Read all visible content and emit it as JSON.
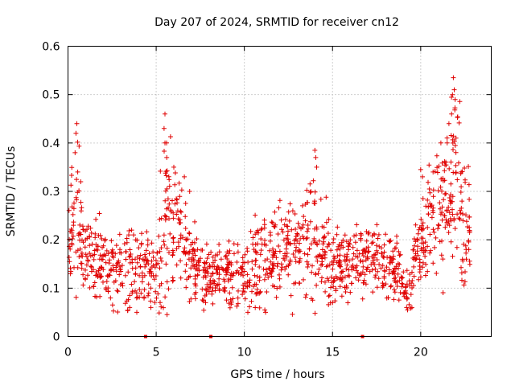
{
  "chart_data": {
    "type": "scatter",
    "title": "Day 207 of 2024, SRMTID for receiver cn12",
    "xlabel": "GPS time / hours",
    "ylabel": "SRMTID / TECUs",
    "xlim": [
      0,
      24
    ],
    "ylim": [
      0,
      0.6
    ],
    "xticks": [
      0,
      5,
      10,
      15,
      20
    ],
    "yticks": [
      0,
      0.1,
      0.2,
      0.3,
      0.4,
      0.5,
      0.6
    ],
    "ytick_labels": [
      "0",
      "0.1",
      "0.2",
      "0.3",
      "0.4",
      "0.5",
      "0.6"
    ],
    "grid": true,
    "marker": "+",
    "color": "#e00000",
    "series_name": "SRMTID",
    "zero_markers_x": [
      4.4,
      8.1,
      16.7
    ],
    "envelope": {
      "description_hours": [
        0,
        0.2,
        0.5,
        0.8,
        1.5,
        2.0,
        3.0,
        3.7,
        4.3,
        5.0,
        5.5,
        6.0,
        6.6,
        7.3,
        8.0,
        9.0,
        10.0,
        11.0,
        12.0,
        13.0,
        14.0,
        14.5,
        15.5,
        16.5,
        17.5,
        18.5,
        19.3,
        20.0,
        20.7,
        21.3,
        21.9,
        22.4,
        22.8
      ],
      "mean_srmtid": [
        0.2,
        0.22,
        0.27,
        0.18,
        0.16,
        0.15,
        0.14,
        0.13,
        0.14,
        0.15,
        0.25,
        0.23,
        0.19,
        0.15,
        0.12,
        0.14,
        0.12,
        0.16,
        0.17,
        0.18,
        0.2,
        0.17,
        0.14,
        0.16,
        0.17,
        0.14,
        0.1,
        0.2,
        0.26,
        0.27,
        0.33,
        0.24,
        0.2
      ],
      "spread_srmtid": [
        0.05,
        0.06,
        0.09,
        0.05,
        0.04,
        0.04,
        0.05,
        0.05,
        0.04,
        0.05,
        0.1,
        0.08,
        0.06,
        0.04,
        0.03,
        0.04,
        0.04,
        0.05,
        0.05,
        0.05,
        0.07,
        0.05,
        0.04,
        0.04,
        0.04,
        0.04,
        0.03,
        0.05,
        0.07,
        0.08,
        0.1,
        0.07,
        0.06
      ]
    },
    "highlight_points": [
      {
        "x": 0.5,
        "y": 0.44
      },
      {
        "x": 0.45,
        "y": 0.42
      },
      {
        "x": 0.4,
        "y": 0.38
      },
      {
        "x": 0.55,
        "y": 0.34
      },
      {
        "x": 5.5,
        "y": 0.46
      },
      {
        "x": 5.45,
        "y": 0.43
      },
      {
        "x": 5.5,
        "y": 0.4
      },
      {
        "x": 5.6,
        "y": 0.37
      },
      {
        "x": 6.0,
        "y": 0.35
      },
      {
        "x": 6.6,
        "y": 0.33
      },
      {
        "x": 6.9,
        "y": 0.3
      },
      {
        "x": 14.0,
        "y": 0.385
      },
      {
        "x": 14.05,
        "y": 0.37
      },
      {
        "x": 14.1,
        "y": 0.35
      },
      {
        "x": 20.0,
        "y": 0.345
      },
      {
        "x": 20.1,
        "y": 0.33
      },
      {
        "x": 20.7,
        "y": 0.34
      },
      {
        "x": 21.5,
        "y": 0.4
      },
      {
        "x": 21.6,
        "y": 0.44
      },
      {
        "x": 21.8,
        "y": 0.5
      },
      {
        "x": 21.85,
        "y": 0.535
      },
      {
        "x": 21.9,
        "y": 0.51
      },
      {
        "x": 21.95,
        "y": 0.49
      },
      {
        "x": 21.75,
        "y": 0.46
      },
      {
        "x": 22.0,
        "y": 0.41
      },
      {
        "x": 22.3,
        "y": 0.34
      },
      {
        "x": 3.9,
        "y": 0.05
      },
      {
        "x": 3.5,
        "y": 0.06
      },
      {
        "x": 4.7,
        "y": 0.06
      },
      {
        "x": 7.8,
        "y": 0.07
      },
      {
        "x": 10.2,
        "y": 0.05
      },
      {
        "x": 11.2,
        "y": 0.05
      },
      {
        "x": 15.0,
        "y": 0.07
      },
      {
        "x": 19.2,
        "y": 0.06
      },
      {
        "x": 19.5,
        "y": 0.06
      }
    ]
  }
}
